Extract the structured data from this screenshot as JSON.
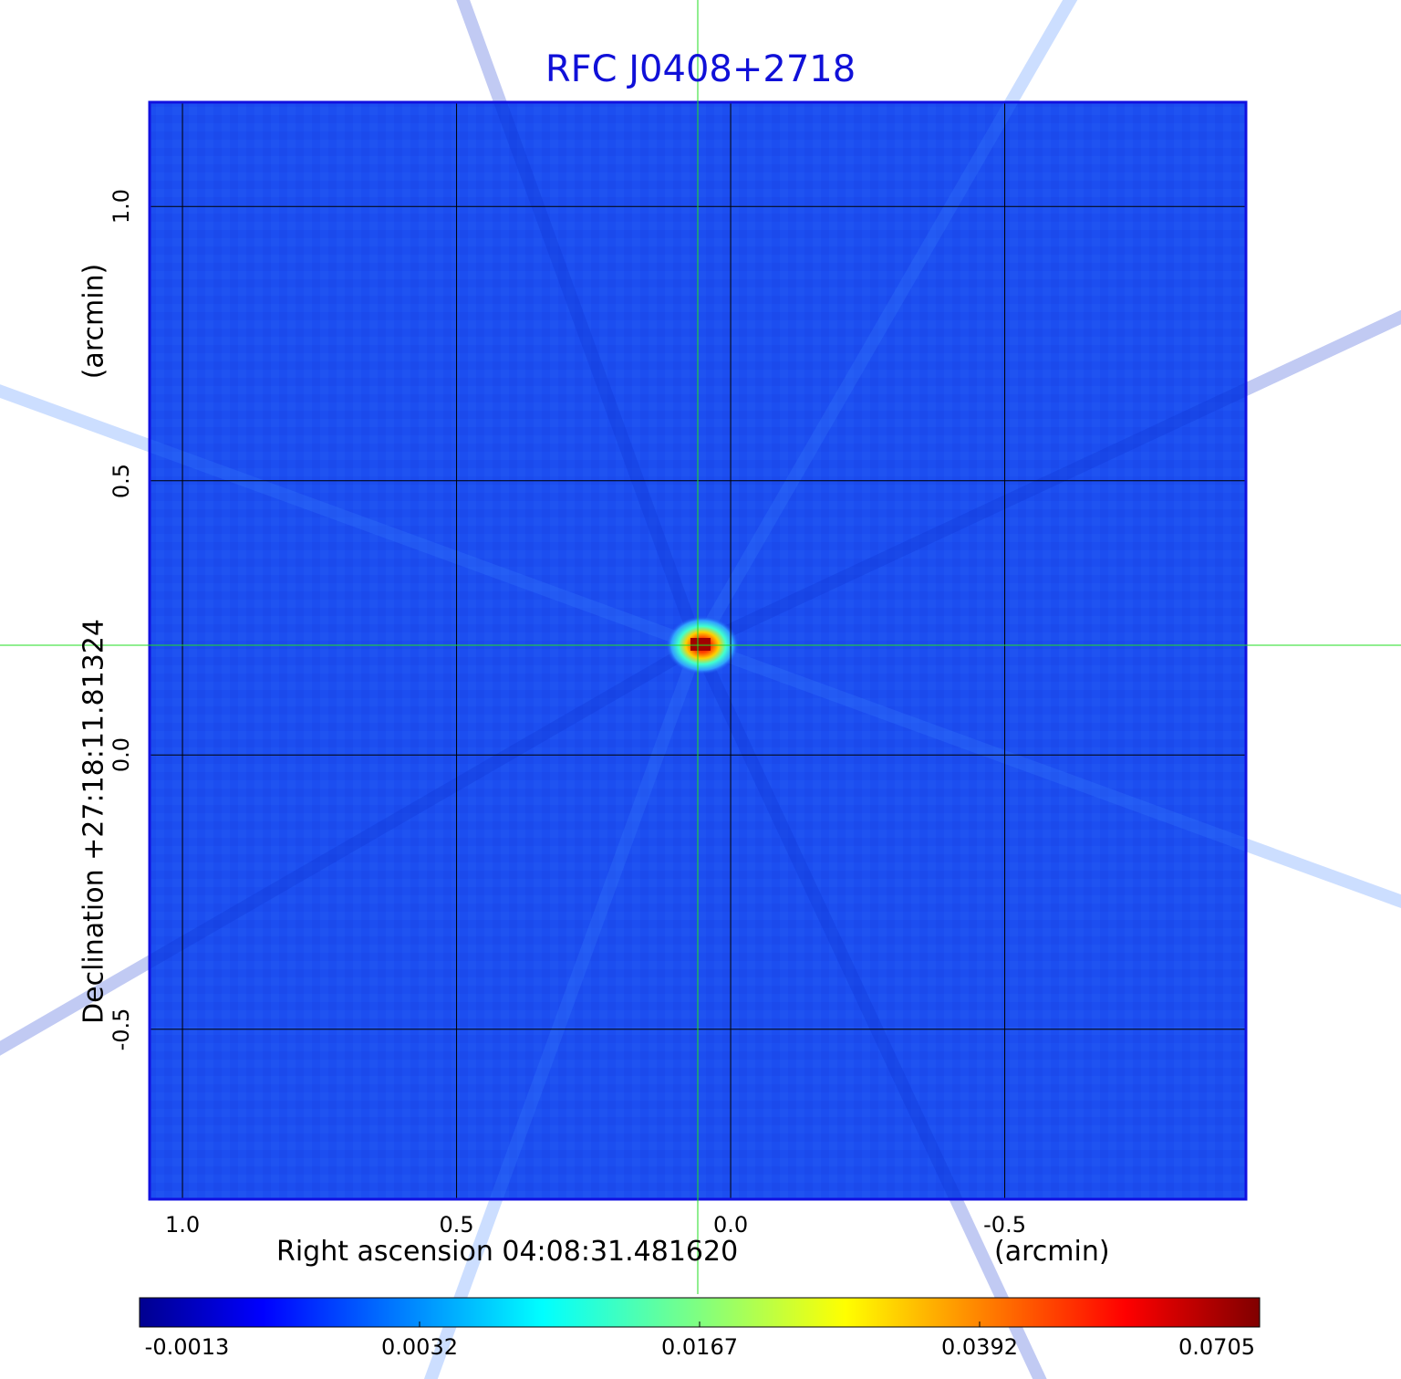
{
  "chart_data": {
    "type": "heatmap",
    "title": "RFC J0408+2718",
    "xlabel": "Right ascension  04:08:31.481620",
    "xunit": "(arcmin)",
    "ylabel": "Declination  +27:18:11.81324",
    "yunit": "(arcmin)",
    "x_ticks": [
      {
        "value": 1.0,
        "label": "1.0"
      },
      {
        "value": 0.5,
        "label": "0.5"
      },
      {
        "value": 0.0,
        "label": "0.0"
      },
      {
        "value": -0.5,
        "label": "-0.5"
      }
    ],
    "y_ticks": [
      {
        "value": 1.0,
        "label": "1.0"
      },
      {
        "value": 0.5,
        "label": "0.5"
      },
      {
        "value": 0.0,
        "label": "0.0"
      },
      {
        "value": -0.5,
        "label": "-0.5"
      }
    ],
    "xlim": [
      1.06,
      -0.94
    ],
    "ylim": [
      -0.81,
      1.19
    ],
    "grid": true,
    "colormap": "jet",
    "colorbar": {
      "orientation": "horizontal",
      "ticks": [
        "-0.0013",
        "0.0032",
        "0.0167",
        "0.0392",
        "0.0705"
      ]
    },
    "peak": {
      "x": 0.06,
      "y": 0.2,
      "value": 0.0705
    },
    "crosshair": {
      "x": 0.06,
      "y": 0.2,
      "color": "#22dd22"
    }
  }
}
